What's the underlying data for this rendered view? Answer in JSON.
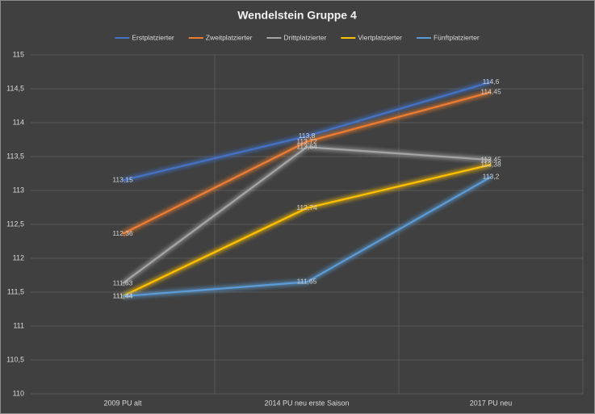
{
  "chart_data": {
    "type": "line",
    "title": "Wendelstein Gruppe 4",
    "categories": [
      "2009 PU alt",
      "2014 PU neu erste Saison",
      "2017 PU neu"
    ],
    "series": [
      {
        "name": "Erstplatzierter",
        "color": "#4472c4",
        "values": [
          113.15,
          113.8,
          114.6
        ],
        "value_labels": [
          "113,15",
          "113,8",
          "114,6"
        ]
      },
      {
        "name": "Zweitplatzierter",
        "color": "#ed7d31",
        "values": [
          112.36,
          113.72,
          114.45
        ],
        "value_labels": [
          "112,36",
          "113,72",
          "114,45"
        ]
      },
      {
        "name": "Drittplatzierter",
        "color": "#a5a5a5",
        "values": [
          111.63,
          113.64,
          113.45
        ],
        "value_labels": [
          "111,63",
          "113,64",
          "113,45"
        ]
      },
      {
        "name": "Viertplatzierter",
        "color": "#ffc000",
        "values": [
          111.44,
          112.74,
          113.38
        ],
        "value_labels": [
          "111,44",
          "112,74",
          "113,38"
        ]
      },
      {
        "name": "Fünftplatzierter",
        "color": "#5b9bd5",
        "values": [
          111.44,
          111.65,
          113.2
        ],
        "value_labels": [
          "111,44",
          "111,65",
          "113,2"
        ]
      }
    ],
    "ylim": [
      110,
      115
    ],
    "yticks": [
      110,
      {
        "value": 110.5,
        "label": "110,5"
      },
      111,
      {
        "value": 111.5,
        "label": "111,5"
      },
      112,
      {
        "value": 112.5,
        "label": "112,5"
      },
      113,
      {
        "value": 113.5,
        "label": "113,5"
      },
      114,
      {
        "value": 114.5,
        "label": "114,5"
      },
      115
    ],
    "grid": true
  }
}
